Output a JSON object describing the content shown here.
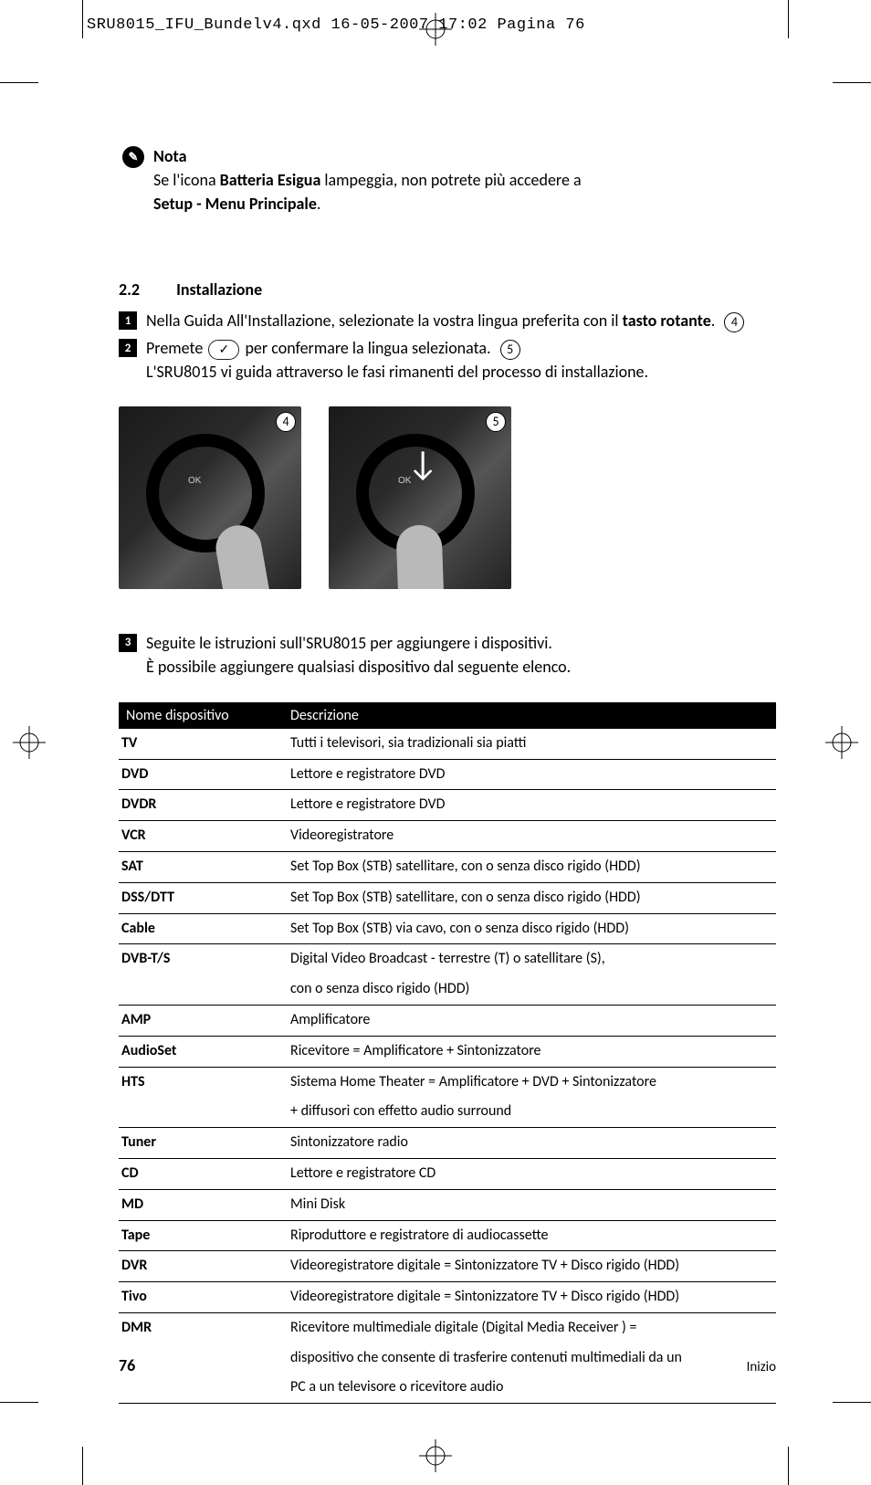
{
  "header": "SRU8015_IFU_Bundelv4.qxd  16-05-2007  17:02  Pagina 76",
  "note": {
    "label": "Nota",
    "line1a": "Se l'icona ",
    "line1b": "Batteria Esigua",
    "line1c": " lampeggia, non potrete più accedere a",
    "line2": "Setup - Menu Principale",
    "line2suffix": "."
  },
  "section": {
    "num": "2.2",
    "title": "Installazione",
    "step1a": "Nella Guida All'Installazione, selezionate la vostra lingua preferita con il ",
    "step1b": "tasto rotante",
    "step1c": ".",
    "ref4": "4",
    "step2a": "Premete ",
    "step2b": " per confermare la lingua selezionata.",
    "ref5": "5",
    "step2c": "L'SRU8015 vi guida attraverso le fasi rimanenti del processo di installazione.",
    "step3a": "Seguite le istruzioni sull'SRU8015 per aggiungere i dispositivi.",
    "step3b": "È possibile aggiungere qualsiasi dispositivo dal seguente elenco."
  },
  "table": {
    "col1": "Nome dispositivo",
    "col2": "Descrizione",
    "rows": [
      {
        "name": "TV",
        "desc": "Tutti i televisori, sia tradizionali sia piatti"
      },
      {
        "name": "DVD",
        "desc": "Lettore e registratore DVD"
      },
      {
        "name": "DVDR",
        "desc": "Lettore e registratore DVD"
      },
      {
        "name": "VCR",
        "desc": "Videoregistratore"
      },
      {
        "name": "SAT",
        "desc": "Set Top Box (STB) satellitare, con o senza disco rigido (HDD)"
      },
      {
        "name": "DSS/DTT",
        "desc": "Set Top Box (STB) satellitare, con o senza disco rigido (HDD)"
      },
      {
        "name": "Cable",
        "desc": "Set Top Box (STB) via cavo, con o senza disco rigido (HDD)"
      },
      {
        "name": "DVB-T/S",
        "desc": "Digital Video Broadcast - terrestre (T) o satellitare (S),",
        "cont": "con o senza disco rigido (HDD)"
      },
      {
        "name": "AMP",
        "desc": "Amplificatore"
      },
      {
        "name": "AudioSet",
        "desc": "Ricevitore = Amplificatore + Sintonizzatore"
      },
      {
        "name": "HTS",
        "desc": "Sistema Home Theater = Amplificatore + DVD + Sintonizzatore",
        "cont": "+ diffusori con effetto audio surround"
      },
      {
        "name": "Tuner",
        "desc": "Sintonizzatore radio"
      },
      {
        "name": "CD",
        "desc": "Lettore e registratore CD"
      },
      {
        "name": "MD",
        "desc": "Mini Disk"
      },
      {
        "name": "Tape",
        "desc": "Riproduttore e registratore di audiocassette"
      },
      {
        "name": "DVR",
        "desc": "Videoregistratore digitale = Sintonizzatore TV + Disco rigido   (HDD)"
      },
      {
        "name": "Tivo",
        "desc": "Videoregistratore digitale = Sintonizzatore TV + Disco rigido (HDD)"
      },
      {
        "name": "DMR",
        "desc": "Ricevitore multimediale digitale (Digital Media Receiver ) =",
        "cont": "dispositivo che consente di trasferire contenuti multimediali da un",
        "cont2": "PC a un televisore o ricevitore audio"
      }
    ]
  },
  "footer": {
    "page": "76",
    "section": "Inizio"
  }
}
